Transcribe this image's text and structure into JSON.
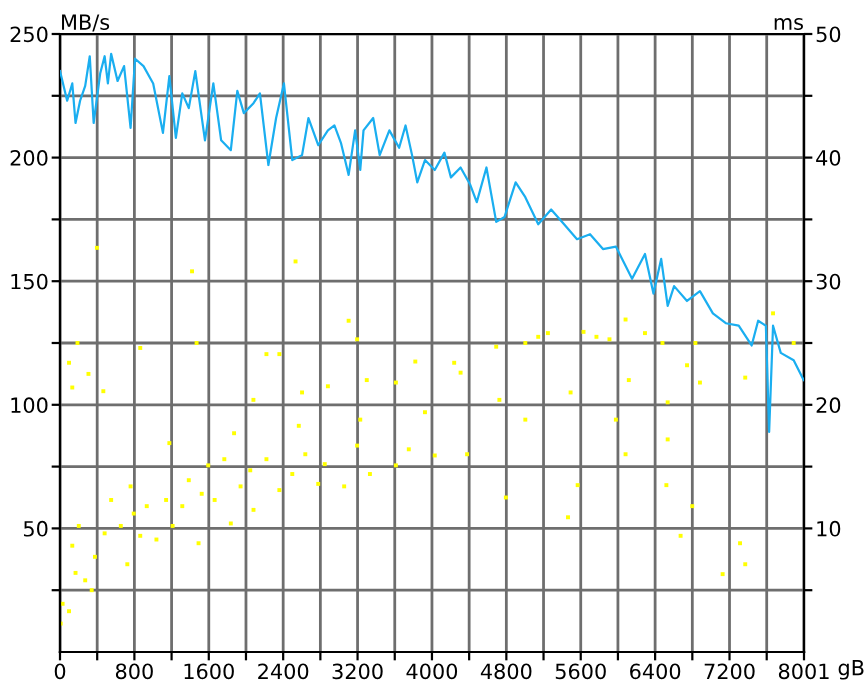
{
  "chart_data": {
    "type": "line",
    "ylabel": "MB/s",
    "y2label": "ms",
    "xlabel": "gB",
    "xlim": [
      0,
      8001
    ],
    "ylim": [
      0,
      250
    ],
    "y2lim": [
      0,
      50
    ],
    "xticks": [
      0,
      {
        "value": 400,
        "label": null
      },
      800,
      {
        "value": 1200,
        "label": null
      },
      1600,
      {
        "value": 2000,
        "label": null
      },
      2400,
      {
        "value": 2800,
        "label": null
      },
      3200,
      {
        "value": 3600,
        "label": null
      },
      4000,
      {
        "value": 4400,
        "label": null
      },
      4800,
      {
        "value": 5200,
        "label": null
      },
      5600,
      {
        "value": 6000,
        "label": null
      },
      6400,
      {
        "value": 6800,
        "label": null
      },
      7200,
      {
        "value": 7600,
        "label": null
      },
      8001
    ],
    "yticks": [
      {
        "value": 25,
        "label": null
      },
      50,
      {
        "value": 75,
        "label": null
      },
      100,
      {
        "value": 125,
        "label": null
      },
      150,
      {
        "value": 175,
        "label": null
      },
      200,
      {
        "value": 225,
        "label": null
      },
      250
    ],
    "y2ticks": [
      {
        "value": 5,
        "label": null
      },
      10,
      {
        "value": 15,
        "label": null
      },
      20,
      {
        "value": 25,
        "label": null
      },
      30,
      {
        "value": 35,
        "label": null
      },
      40,
      {
        "value": 45,
        "label": null
      },
      50
    ],
    "grid": true,
    "series": [
      {
        "axis": "y",
        "color": "#1aaef0",
        "marker": "none",
        "line_style": "solid",
        "x": [
          0,
          77,
          132,
          167,
          216,
          271,
          320,
          362,
          432,
          480,
          515,
          550,
          619,
          689,
          759,
          807,
          898,
          1002,
          1107,
          1176,
          1246,
          1315,
          1385,
          1455,
          1559,
          1649,
          1733,
          1837,
          1907,
          1977,
          2081,
          2150,
          2241,
          2324,
          2408,
          2498,
          2603,
          2672,
          2777,
          2881,
          2951,
          3021,
          3104,
          3174,
          3229,
          3264,
          3368,
          3438,
          3542,
          3647,
          3716,
          3786,
          3842,
          3925,
          4030,
          4134,
          4204,
          4308,
          4412,
          4482,
          4586,
          4691,
          4781,
          4900,
          5004,
          5143,
          5282,
          5421,
          5560,
          5700,
          5839,
          5978,
          6152,
          6291,
          6382,
          6465,
          6535,
          6604,
          6743,
          6882,
          7021,
          7160,
          7299,
          7438,
          7508,
          7591,
          7626,
          7668,
          7751,
          7890,
          7997
        ],
        "values": [
          235,
          223,
          230,
          214,
          223,
          229,
          241,
          214,
          234,
          241,
          230,
          242,
          231,
          237,
          212,
          240,
          237,
          230,
          210,
          233,
          208,
          226,
          220,
          235,
          207,
          230,
          207,
          203,
          227,
          218,
          222,
          226,
          197,
          216,
          230,
          199,
          201,
          216,
          205,
          211,
          213,
          206,
          193,
          211,
          195,
          211,
          216,
          201,
          211,
          204,
          213,
          201,
          190,
          199,
          195,
          202,
          192,
          196,
          189,
          182,
          196,
          174,
          176,
          190,
          184,
          173,
          179,
          173,
          167,
          169,
          163,
          164,
          151,
          161,
          145,
          159,
          140,
          148,
          142,
          146,
          137,
          133,
          132,
          124,
          134,
          132,
          89,
          132,
          121,
          118,
          110
        ]
      },
      {
        "type": "scatter",
        "axis": "y2",
        "color": "#ffff00",
        "marker": "square",
        "x": [
          7,
          28,
          97,
          132,
          202,
          167,
          271,
          341,
          376,
          480,
          550,
          654,
          724,
          759,
          793,
          863,
          933,
          1037,
          1141,
          1211,
          1315,
          1385,
          1490,
          1524,
          1594,
          1663,
          1767,
          1837,
          1942,
          2046,
          2081,
          2220,
          2359,
          2498,
          2638,
          2777,
          2847,
          3056,
          3195,
          3333,
          3612,
          3751,
          4030,
          4378,
          4795,
          5463,
          5567,
          6082,
          6521,
          6674,
          6799,
          7126,
          7313,
          7369,
          397,
          1420,
          2533,
          3104,
          3195,
          188,
          863,
          1469,
          97,
          306,
          132,
          466,
          2220,
          2359,
          3612,
          3821,
          4239,
          4691,
          5004,
          5143,
          5247,
          5630,
          5769,
          5909,
          6082,
          6291,
          6479,
          6833,
          7369,
          7890,
          7668,
          6743,
          6882,
          6535,
          4308,
          2881,
          3299,
          2603,
          2080,
          4725,
          5491,
          5978,
          6117,
          5004,
          3925,
          3229,
          2568,
          1872,
          1176,
          6535
        ],
        "values": [
          2.3,
          3.9,
          3.3,
          8.6,
          10.2,
          6.4,
          5.8,
          5.0,
          7.7,
          9.6,
          12.3,
          10.2,
          7.1,
          13.4,
          11.2,
          9.4,
          11.8,
          9.1,
          12.3,
          10.2,
          11.8,
          13.9,
          8.8,
          12.8,
          15.1,
          12.3,
          15.6,
          10.4,
          13.4,
          14.7,
          11.5,
          15.6,
          13.1,
          14.4,
          16.0,
          13.6,
          15.2,
          13.4,
          16.7,
          14.4,
          15.1,
          16.4,
          15.9,
          16.0,
          12.5,
          10.9,
          13.5,
          16.0,
          13.5,
          9.4,
          11.8,
          6.3,
          8.8,
          7.1,
          32.7,
          30.8,
          31.6,
          26.8,
          25.3,
          25.0,
          24.6,
          25.0,
          23.4,
          22.5,
          21.4,
          21.1,
          24.1,
          24.1,
          21.8,
          23.5,
          23.4,
          24.7,
          25.0,
          25.5,
          25.8,
          25.9,
          25.5,
          25.3,
          26.9,
          25.8,
          25.0,
          25.0,
          22.2,
          25.0,
          27.4,
          23.2,
          21.8,
          20.2,
          22.6,
          21.5,
          22.0,
          21.0,
          20.4,
          20.4,
          21.0,
          18.8,
          22.0,
          18.8,
          19.4,
          18.8,
          18.3,
          17.7,
          16.9,
          17.2
        ]
      }
    ]
  }
}
